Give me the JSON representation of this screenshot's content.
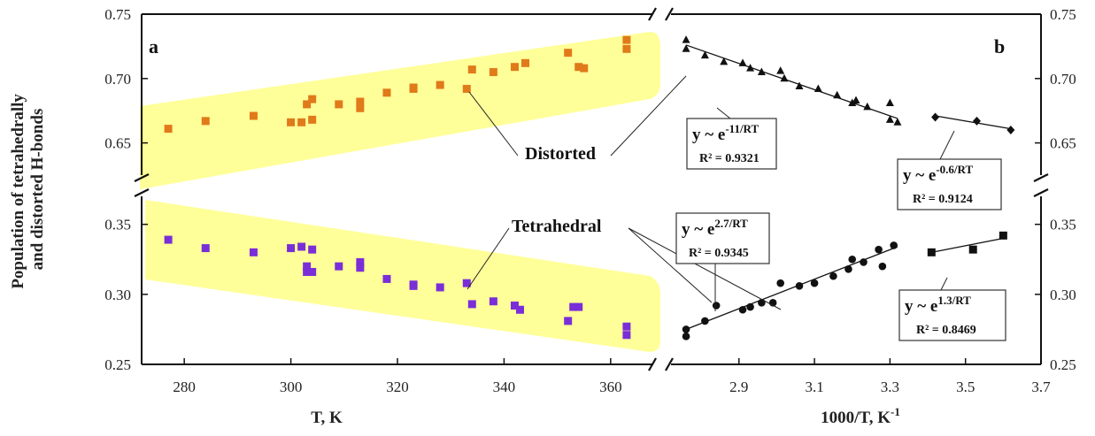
{
  "chart_data": [
    {
      "panel": "a",
      "type": "scatter",
      "xlabel": "T, K",
      "ylabel": "Population of tetrahedrally and distorted H-bonds",
      "xlim": [
        272,
        368
      ],
      "xticks": [
        "280",
        "300",
        "320",
        "340",
        "360"
      ],
      "ylim_upper": [
        0.625,
        0.75
      ],
      "ylim_lower": [
        0.25,
        0.37
      ],
      "yticks_upper": [
        "0.65",
        "0.70",
        "0.75"
      ],
      "yticks_lower": [
        "0.25",
        "0.30",
        "0.35"
      ],
      "series": [
        {
          "name": "Distorted",
          "color": "#e07a1a",
          "marker": "square",
          "points": [
            [
              277,
              0.661
            ],
            [
              284,
              0.667
            ],
            [
              293,
              0.671
            ],
            [
              300,
              0.666
            ],
            [
              302,
              0.666
            ],
            [
              303,
              0.68
            ],
            [
              304,
              0.684
            ],
            [
              304,
              0.668
            ],
            [
              309,
              0.68
            ],
            [
              313,
              0.682
            ],
            [
              313,
              0.677
            ],
            [
              318,
              0.689
            ],
            [
              323,
              0.693
            ],
            [
              323,
              0.692
            ],
            [
              328,
              0.695
            ],
            [
              333,
              0.692
            ],
            [
              334,
              0.707
            ],
            [
              338,
              0.705
            ],
            [
              342,
              0.709
            ],
            [
              344,
              0.712
            ],
            [
              352,
              0.72
            ],
            [
              354,
              0.709
            ],
            [
              355,
              0.708
            ],
            [
              363,
              0.73
            ],
            [
              363,
              0.723
            ]
          ]
        },
        {
          "name": "Tetrahedral",
          "color": "#7a2ed8",
          "marker": "square",
          "points": [
            [
              277,
              0.339
            ],
            [
              284,
              0.333
            ],
            [
              293,
              0.33
            ],
            [
              300,
              0.333
            ],
            [
              302,
              0.334
            ],
            [
              303,
              0.32
            ],
            [
              303,
              0.316
            ],
            [
              304,
              0.332
            ],
            [
              304,
              0.316
            ],
            [
              309,
              0.32
            ],
            [
              313,
              0.323
            ],
            [
              313,
              0.319
            ],
            [
              318,
              0.311
            ],
            [
              323,
              0.307
            ],
            [
              323,
              0.306
            ],
            [
              328,
              0.305
            ],
            [
              333,
              0.308
            ],
            [
              334,
              0.293
            ],
            [
              338,
              0.295
            ],
            [
              342,
              0.292
            ],
            [
              343,
              0.289
            ],
            [
              352,
              0.281
            ],
            [
              353,
              0.291
            ],
            [
              354,
              0.291
            ],
            [
              363,
              0.277
            ],
            [
              363,
              0.271
            ]
          ]
        }
      ],
      "bands": [
        "yellow",
        "yellow"
      ],
      "band_color": "#ffff99",
      "annotations": [
        "Distorted",
        "Tetrahedral"
      ],
      "panel_label": "a"
    },
    {
      "panel": "b",
      "type": "scatter",
      "xlabel": "1000/T, K",
      "xlabel_sup": "-1",
      "xlim": [
        2.72,
        3.7
      ],
      "xticks": [
        "2.9",
        "3.1",
        "3.3",
        "3.5",
        "3.7"
      ],
      "ylim_upper": [
        0.625,
        0.75
      ],
      "ylim_lower": [
        0.25,
        0.37
      ],
      "yticks_upper": [
        "0.65",
        "0.70",
        "0.75"
      ],
      "yticks_lower": [
        "0.25",
        "0.30",
        "0.35"
      ],
      "series": [
        {
          "marker": "triangle",
          "color": "#111111",
          "points": [
            [
              2.76,
              0.73
            ],
            [
              2.76,
              0.723
            ],
            [
              2.81,
              0.718
            ],
            [
              2.86,
              0.713
            ],
            [
              2.91,
              0.712
            ],
            [
              2.93,
              0.708
            ],
            [
              2.96,
              0.705
            ],
            [
              3.01,
              0.706
            ],
            [
              3.02,
              0.7
            ],
            [
              3.06,
              0.694
            ],
            [
              3.11,
              0.692
            ],
            [
              3.16,
              0.687
            ],
            [
              3.2,
              0.681
            ],
            [
              3.21,
              0.683
            ],
            [
              3.24,
              0.678
            ],
            [
              3.3,
              0.681
            ],
            [
              3.3,
              0.668
            ],
            [
              3.32,
              0.666
            ]
          ]
        },
        {
          "marker": "diamond",
          "color": "#111111",
          "points": [
            [
              3.42,
              0.67
            ],
            [
              3.53,
              0.667
            ],
            [
              3.62,
              0.66
            ]
          ]
        },
        {
          "marker": "circle",
          "color": "#111111",
          "points": [
            [
              2.76,
              0.275
            ],
            [
              2.76,
              0.27
            ],
            [
              2.81,
              0.281
            ],
            [
              2.84,
              0.292
            ],
            [
              2.91,
              0.289
            ],
            [
              2.93,
              0.291
            ],
            [
              2.96,
              0.294
            ],
            [
              2.99,
              0.294
            ],
            [
              3.01,
              0.308
            ],
            [
              3.06,
              0.306
            ],
            [
              3.1,
              0.308
            ],
            [
              3.15,
              0.313
            ],
            [
              3.19,
              0.318
            ],
            [
              3.2,
              0.325
            ],
            [
              3.23,
              0.323
            ],
            [
              3.27,
              0.332
            ],
            [
              3.28,
              0.32
            ],
            [
              3.31,
              0.335
            ]
          ]
        },
        {
          "marker": "square",
          "color": "#111111",
          "points": [
            [
              3.41,
              0.33
            ],
            [
              3.52,
              0.332
            ],
            [
              3.6,
              0.342
            ]
          ]
        }
      ],
      "fits": [
        {
          "base": "y ~ e",
          "exp": "-11/RT",
          "r2": "R² = 0.9321",
          "from": [
            2.76,
            0.726
          ],
          "to": [
            3.32,
            0.669
          ]
        },
        {
          "base": "y ~ e",
          "exp": "-0.6/RT",
          "r2": "R² = 0.9124",
          "from": [
            3.42,
            0.671
          ],
          "to": [
            3.62,
            0.661
          ]
        },
        {
          "base": "y ~ e",
          "exp": "2.7/RT",
          "r2": "R² = 0.9345",
          "from": [
            2.76,
            0.275
          ],
          "to": [
            3.32,
            0.334
          ]
        },
        {
          "base": "y ~ e",
          "exp": "1.3/RT",
          "r2": "R² = 0.8469",
          "from": [
            3.41,
            0.33
          ],
          "to": [
            3.6,
            0.34
          ]
        }
      ],
      "panel_label": "b"
    }
  ]
}
